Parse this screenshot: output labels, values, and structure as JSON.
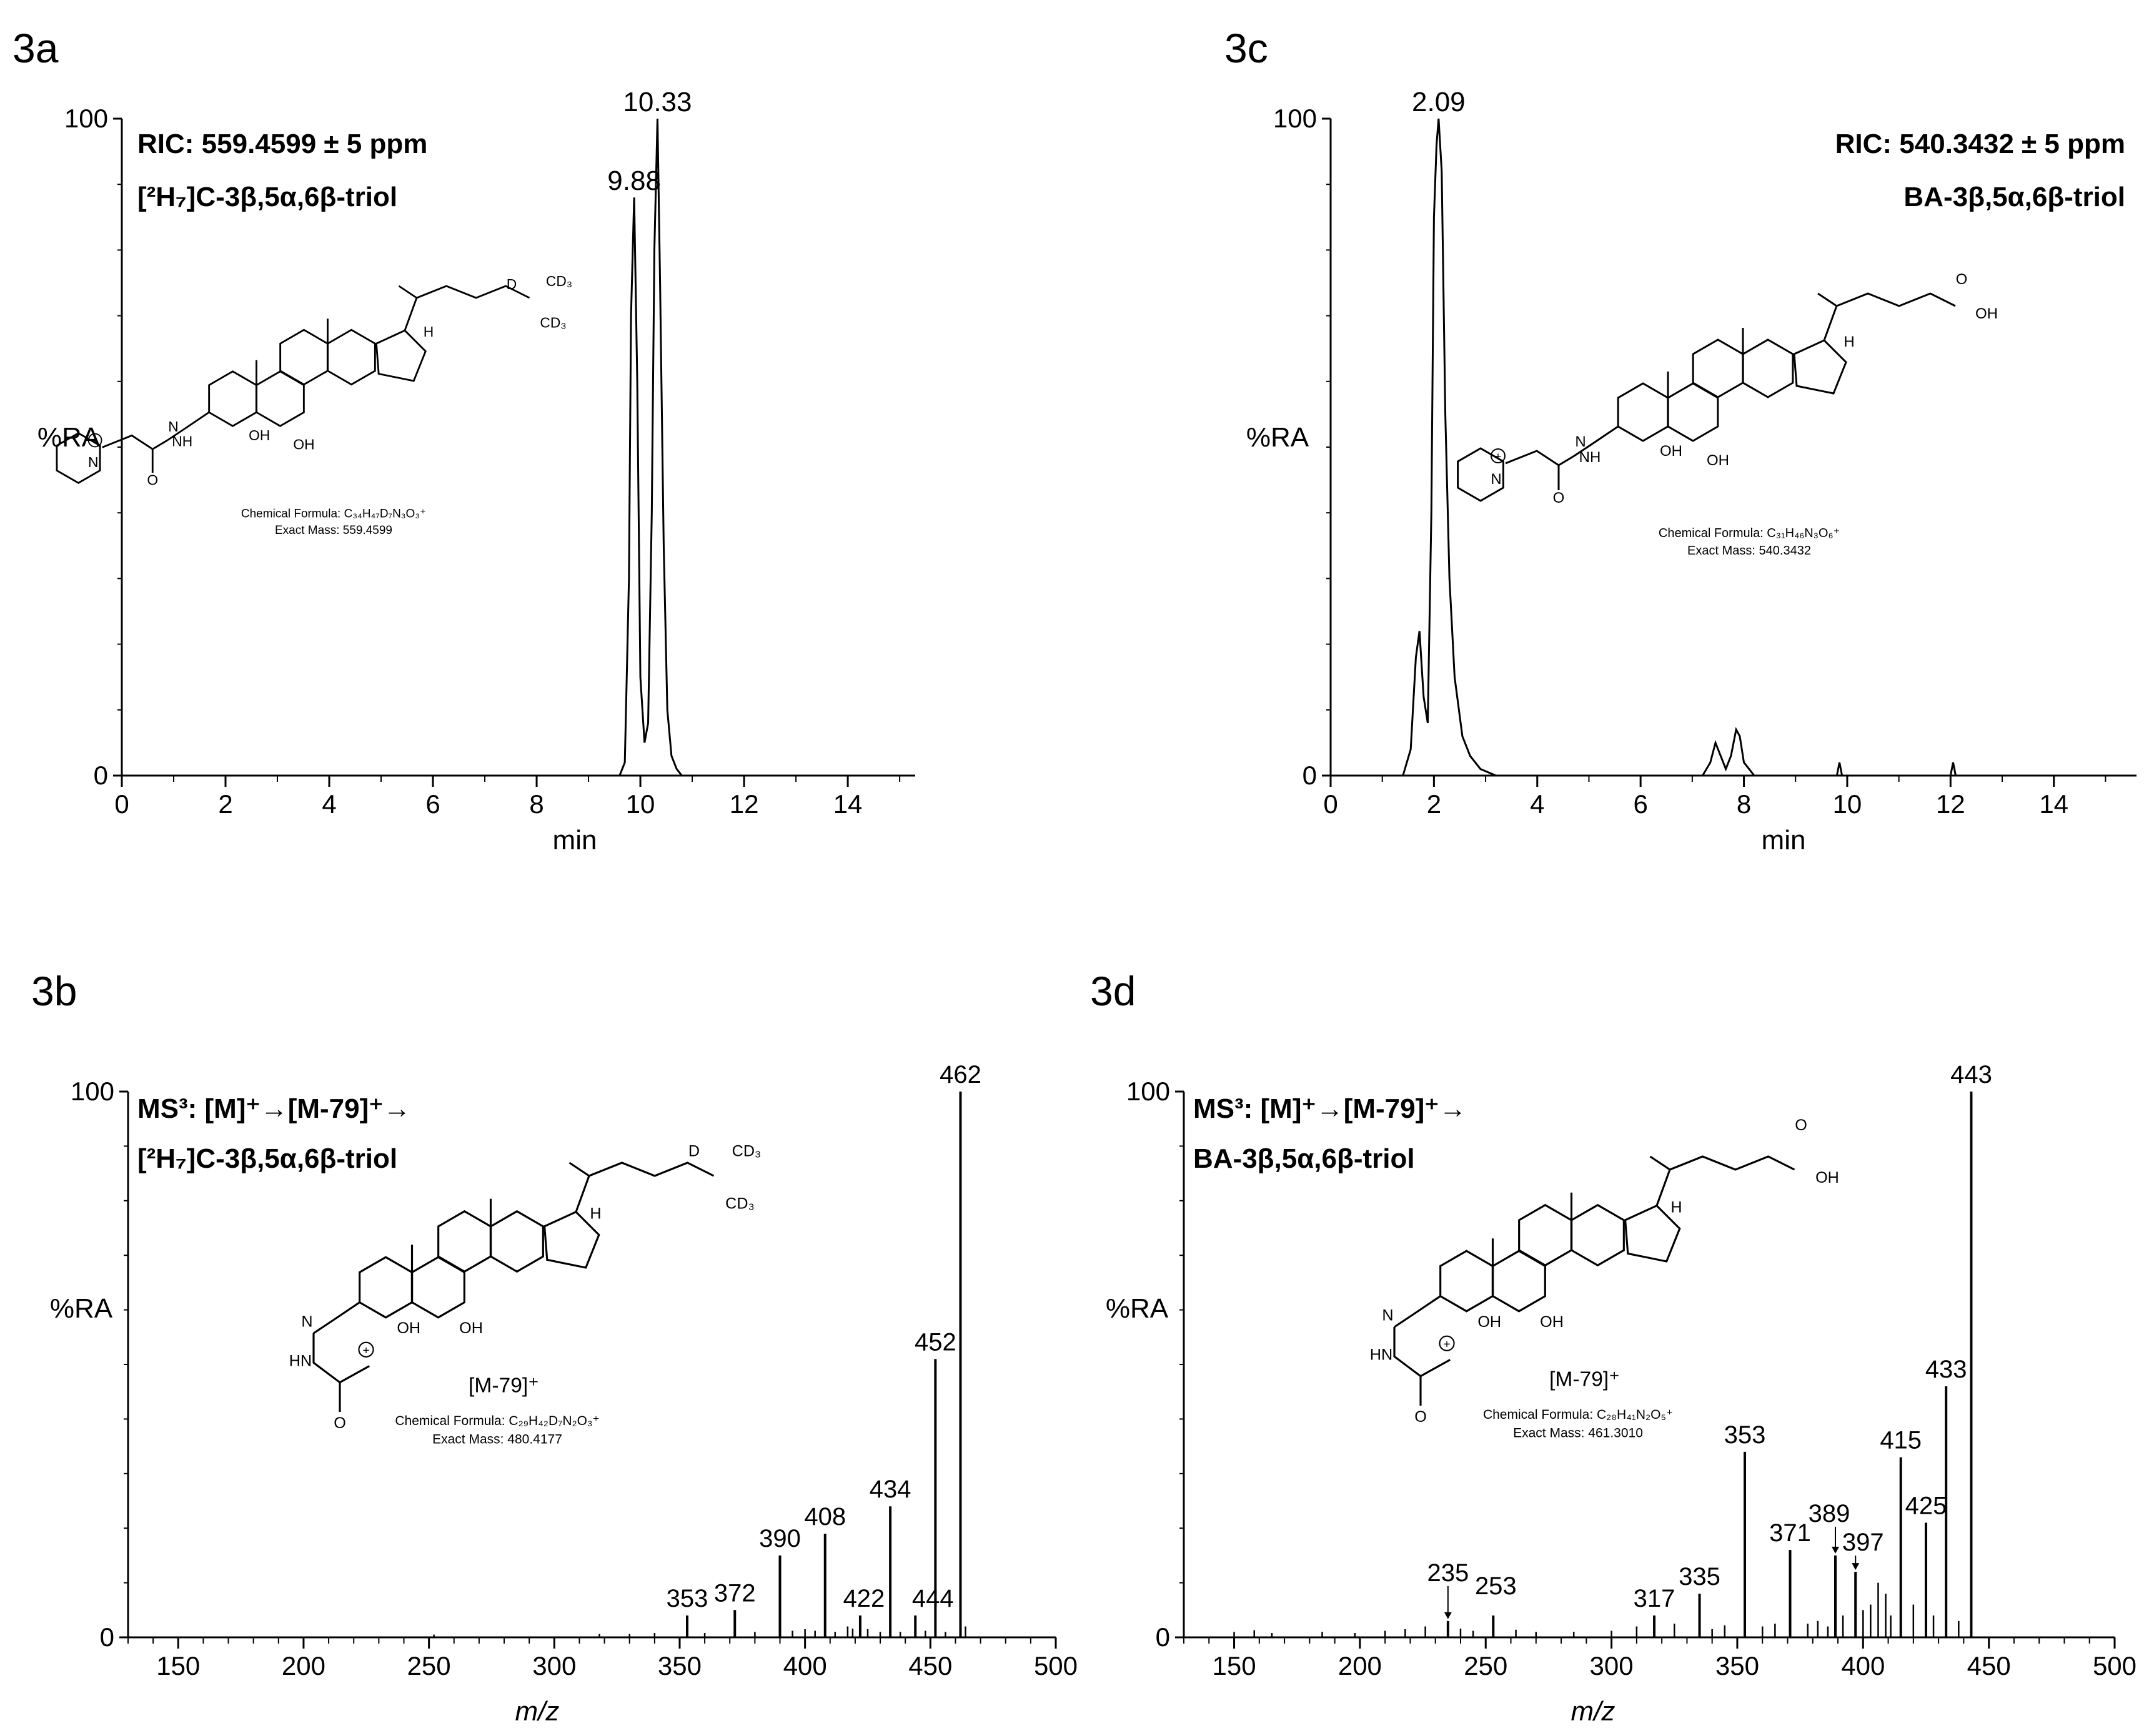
{
  "chart_data": [
    {
      "id": "3a",
      "type": "line",
      "panel_label": "3a",
      "title_lines": [
        "RIC: 559.4599 ± 5 ppm",
        "[²H₇]C-3β,5α,6β-triol"
      ],
      "xlabel": "min",
      "ylabel": "%RA",
      "xlim": [
        0,
        15.3
      ],
      "ylim": [
        0,
        100
      ],
      "xticks": [
        0,
        2,
        4,
        6,
        8,
        10,
        12,
        14
      ],
      "yticks": [
        0,
        100
      ],
      "series": [
        {
          "name": "trace",
          "x": [
            0,
            9.6,
            9.7,
            9.78,
            9.82,
            9.88,
            9.94,
            10.0,
            10.08,
            10.15,
            10.22,
            10.27,
            10.33,
            10.38,
            10.45,
            10.52,
            10.6,
            10.7,
            10.8,
            15.3
          ],
          "y": [
            0,
            0,
            2,
            30,
            70,
            88,
            60,
            15,
            5,
            8,
            40,
            80,
            100,
            75,
            35,
            10,
            3,
            1,
            0,
            0
          ]
        }
      ],
      "peak_labels": [
        {
          "x": 9.88,
          "y": 88,
          "text": "9.88"
        },
        {
          "x": 10.33,
          "y": 100,
          "text": "10.33"
        }
      ],
      "structure": {
        "formula": "Chemical Formula: C₃₄H₄₇D₇N₃O₃⁺",
        "mass": "Exact Mass: 559.4599",
        "groups": [
          "OH",
          "OH",
          "NH",
          "N",
          "O",
          "N",
          "H",
          "D",
          "CD₃",
          "CD₃"
        ]
      }
    },
    {
      "id": "3c",
      "type": "line",
      "panel_label": "3c",
      "title_lines": [
        "RIC: 540.3432 ± 5 ppm",
        "BA-3β,5α,6β-triol"
      ],
      "xlabel": "min",
      "ylabel": "%RA",
      "xlim": [
        0,
        15.6
      ],
      "ylim": [
        0,
        100
      ],
      "xticks": [
        0,
        2,
        4,
        6,
        8,
        10,
        12,
        14
      ],
      "yticks": [
        0,
        100
      ],
      "series": [
        {
          "name": "trace",
          "x": [
            0,
            1.4,
            1.55,
            1.65,
            1.72,
            1.8,
            1.88,
            1.95,
            2.0,
            2.05,
            2.09,
            2.15,
            2.22,
            2.3,
            2.4,
            2.55,
            2.7,
            2.9,
            3.2,
            7.2,
            7.35,
            7.45,
            7.55,
            7.65,
            7.75,
            7.85,
            7.92,
            8.0,
            8.1,
            8.2,
            9.8,
            9.85,
            9.9,
            12.0,
            12.05,
            12.1,
            15.6
          ],
          "y": [
            0,
            0,
            4,
            18,
            22,
            12,
            8,
            40,
            85,
            96,
            100,
            92,
            55,
            30,
            15,
            6,
            3,
            1,
            0,
            0,
            2,
            5,
            3,
            1,
            3,
            7,
            6,
            2,
            1,
            0,
            0,
            2,
            0,
            0,
            2,
            0,
            0
          ]
        }
      ],
      "peak_labels": [
        {
          "x": 2.09,
          "y": 100,
          "text": "2.09"
        }
      ],
      "structure": {
        "formula": "Chemical Formula: C₃₁H₄₆N₃O₆⁺",
        "mass": "Exact Mass: 540.3432",
        "groups": [
          "OH",
          "OH",
          "NH",
          "N",
          "O",
          "N",
          "H",
          "O",
          "OH"
        ]
      }
    },
    {
      "id": "3b",
      "type": "bar",
      "panel_label": "3b",
      "title_lines": [
        "MS³: [M]⁺→[M-79]⁺→",
        "[²H₇]C-3β,5α,6β-triol"
      ],
      "xlabel": "m/z",
      "ylabel": "%RA",
      "xlim": [
        130,
        500
      ],
      "ylim": [
        0,
        100
      ],
      "xticks": [
        150,
        200,
        250,
        300,
        350,
        400,
        450,
        500
      ],
      "yticks": [
        0,
        100
      ],
      "peaks": [
        {
          "mz": 353,
          "value": 4,
          "label": "353"
        },
        {
          "mz": 372,
          "value": 5,
          "label": "372"
        },
        {
          "mz": 390,
          "value": 15,
          "label": "390"
        },
        {
          "mz": 408,
          "value": 19,
          "label": "408"
        },
        {
          "mz": 422,
          "value": 4,
          "label": "422"
        },
        {
          "mz": 434,
          "value": 24,
          "label": "434"
        },
        {
          "mz": 444,
          "value": 4,
          "label": "444"
        },
        {
          "mz": 452,
          "value": 51,
          "label": "452"
        },
        {
          "mz": 462,
          "value": 100,
          "label": "462"
        }
      ],
      "noise": [
        [
          252,
          0.5
        ],
        [
          318,
          0.6
        ],
        [
          330,
          0.6
        ],
        [
          340,
          0.8
        ],
        [
          360,
          0.8
        ],
        [
          380,
          1
        ],
        [
          395,
          1.2
        ],
        [
          400,
          1.5
        ],
        [
          404,
          1.2
        ],
        [
          412,
          1
        ],
        [
          417,
          2
        ],
        [
          419,
          1.6
        ],
        [
          425,
          1.5
        ],
        [
          430,
          1
        ],
        [
          438,
          1
        ],
        [
          448,
          1.2
        ],
        [
          456,
          1
        ],
        [
          464,
          2
        ]
      ],
      "structure": {
        "ion": "[M-79]⁺",
        "formula": "Chemical Formula: C₂₉H₄₂D₇N₂O₃⁺",
        "mass": "Exact Mass: 480.4177",
        "groups": [
          "OH",
          "OH",
          "N",
          "HN",
          "O",
          "H",
          "D",
          "CD₃",
          "CD₃"
        ]
      }
    },
    {
      "id": "3d",
      "type": "bar",
      "panel_label": "3d",
      "title_lines": [
        "MS³: [M]⁺→[M-79]⁺→",
        "BA-3β,5α,6β-triol"
      ],
      "xlabel": "m/z",
      "ylabel": "%RA",
      "xlim": [
        130,
        500
      ],
      "ylim": [
        0,
        100
      ],
      "xticks": [
        150,
        200,
        250,
        300,
        350,
        400,
        450,
        500
      ],
      "yticks": [
        0,
        100
      ],
      "peaks": [
        {
          "mz": 235,
          "value": 3,
          "label": "235"
        },
        {
          "mz": 253,
          "value": 4,
          "label": "253"
        },
        {
          "mz": 317,
          "value": 4,
          "label": "317"
        },
        {
          "mz": 335,
          "value": 8,
          "label": "335"
        },
        {
          "mz": 353,
          "value": 34,
          "label": "353"
        },
        {
          "mz": 371,
          "value": 16,
          "label": "371"
        },
        {
          "mz": 389,
          "value": 15,
          "label": "389"
        },
        {
          "mz": 397,
          "value": 12,
          "label": "397"
        },
        {
          "mz": 415,
          "value": 33,
          "label": "415"
        },
        {
          "mz": 425,
          "value": 21,
          "label": "425"
        },
        {
          "mz": 433,
          "value": 46,
          "label": "433"
        },
        {
          "mz": 443,
          "value": 100,
          "label": "443"
        }
      ],
      "noise": [
        [
          150,
          1
        ],
        [
          158,
          1.3
        ],
        [
          165,
          0.8
        ],
        [
          185,
          1
        ],
        [
          198,
          0.8
        ],
        [
          210,
          1.2
        ],
        [
          218,
          1.5
        ],
        [
          226,
          2
        ],
        [
          240,
          1.6
        ],
        [
          245,
          1.2
        ],
        [
          262,
          1.4
        ],
        [
          270,
          1
        ],
        [
          285,
          1
        ],
        [
          300,
          1.2
        ],
        [
          310,
          2
        ],
        [
          325,
          2.5
        ],
        [
          340,
          1.5
        ],
        [
          345,
          2.2
        ],
        [
          360,
          2
        ],
        [
          365,
          2.5
        ],
        [
          378,
          2.5
        ],
        [
          382,
          3
        ],
        [
          386,
          2
        ],
        [
          392,
          4
        ],
        [
          400,
          5
        ],
        [
          403,
          6
        ],
        [
          406,
          10
        ],
        [
          409,
          8
        ],
        [
          411,
          4
        ],
        [
          420,
          6
        ],
        [
          428,
          4
        ],
        [
          438,
          3
        ]
      ],
      "structure": {
        "ion": "[M-79]⁺",
        "formula": "Chemical Formula: C₂₈H₄₁N₂O₅⁺",
        "mass": "Exact Mass: 461.3010",
        "groups": [
          "OH",
          "OH",
          "N",
          "HN",
          "O",
          "H",
          "O",
          "OH"
        ]
      }
    }
  ]
}
